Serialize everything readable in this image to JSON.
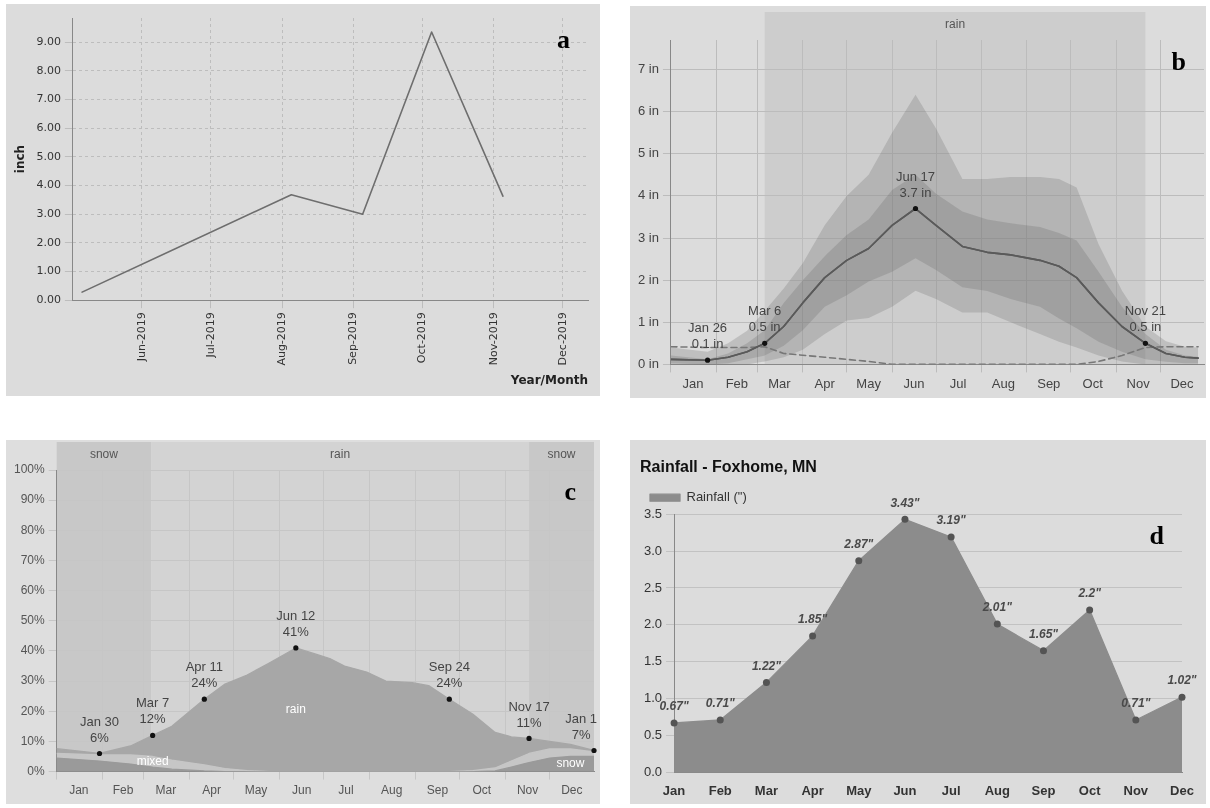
{
  "chart_data": [
    {
      "type": "line",
      "xlabel": "Year/Month",
      "ylabel": "inch",
      "annotations": [
        "a"
      ],
      "x": [
        "2019-05-06",
        "2019-08-05",
        "2019-09-05",
        "2019-10-05",
        "2019-11-05"
      ],
      "series": [
        {
          "color": "#6e6e6e",
          "values": [
            0.28,
            3.68,
            3.0,
            9.36,
            3.63
          ]
        }
      ],
      "xlim": [
        "2019-05-02",
        "2019-12-12"
      ],
      "xticks": [
        {
          "value": "2019-06-01",
          "label": "Jun-2019"
        },
        {
          "value": "2019-07-01",
          "label": "Jul-2019"
        },
        {
          "value": "2019-08-01",
          "label": "Aug-2019"
        },
        {
          "value": "2019-09-01",
          "label": "Sep-2019"
        },
        {
          "value": "2019-10-01",
          "label": "Oct-2019"
        },
        {
          "value": "2019-11-01",
          "label": "Nov-2019"
        },
        {
          "value": "2019-12-01",
          "label": "Dec-2019"
        }
      ],
      "ylim": [
        0,
        9.85
      ],
      "yticks": [
        {
          "value": 0,
          "label": "0.00"
        },
        {
          "value": 1,
          "label": "1.00"
        },
        {
          "value": 2,
          "label": "2.00"
        },
        {
          "value": 3,
          "label": "3.00"
        },
        {
          "value": 4,
          "label": "4.00"
        },
        {
          "value": 5,
          "label": "5.00"
        },
        {
          "value": 6,
          "label": "6.00"
        },
        {
          "value": 7,
          "label": "7.00"
        },
        {
          "value": 8,
          "label": "8.00"
        },
        {
          "value": 9,
          "label": "9.00"
        }
      ],
      "grid": true,
      "marker": "none"
    },
    {
      "type": "line",
      "annotations": [
        "b",
        {
          "text": "Jan 26\n0.1 in",
          "x": "--01-26",
          "y": 0.1
        },
        {
          "text": "Mar 6\n0.5 in",
          "x": "--03-06",
          "y": 0.5
        },
        {
          "text": "Jun 17\n3.7 in",
          "x": "--06-17",
          "y": 3.7
        },
        {
          "text": "Nov 21\n0.5 in",
          "x": "--11-21",
          "y": 0.5
        }
      ],
      "x": [
        "--01-01",
        "--01-26",
        "--02-09",
        "--02-22",
        "--03-06",
        "--03-19",
        "--04-01",
        "--04-16",
        "--05-01",
        "--05-16",
        "--06-01",
        "--06-17",
        "--07-01",
        "--07-19",
        "--08-05",
        "--08-21",
        "--09-10",
        "--09-23",
        "--10-05",
        "--10-20",
        "--11-05",
        "--11-21",
        "--12-05",
        "--12-18",
        "--12-27"
      ],
      "series": [
        {
          "color": "#5a5a5a",
          "values": [
            0.12,
            0.1,
            0.17,
            0.3,
            0.5,
            0.9,
            1.46,
            2.06,
            2.47,
            2.75,
            3.3,
            3.7,
            3.3,
            2.8,
            2.66,
            2.6,
            2.47,
            2.33,
            2.06,
            1.46,
            0.9,
            0.5,
            0.26,
            0.17,
            0.15
          ],
          "lower": [
            0.03,
            0,
            0.03,
            0.12,
            0.21,
            0.44,
            0.81,
            1.37,
            1.64,
            1.97,
            2.2,
            2.52,
            2.24,
            1.83,
            1.74,
            1.55,
            1.37,
            1.09,
            0.86,
            0.54,
            0.3,
            0.12,
            0.06,
            0.03,
            0.03
          ],
          "upper": [
            0.21,
            0.12,
            0.26,
            0.5,
            0.81,
            1.46,
            2.0,
            2.57,
            3.07,
            3.44,
            4.14,
            4.5,
            4.05,
            3.63,
            3.44,
            3.35,
            3.26,
            3.12,
            2.94,
            2.2,
            1.37,
            0.72,
            0.35,
            0.21,
            0.18
          ]
        },
        {
          "color": "#5a5a5a",
          "values": [
            0.12,
            0.1,
            0.17,
            0.3,
            0.5,
            0.9,
            1.46,
            2.06,
            2.47,
            2.75,
            3.3,
            3.7,
            3.3,
            2.8,
            2.66,
            2.6,
            2.47,
            2.33,
            2.06,
            1.46,
            0.9,
            0.5,
            0.26,
            0.17,
            0.15
          ],
          "lower": [
            0,
            0,
            0,
            0,
            0.07,
            0.17,
            0.35,
            0.72,
            1.04,
            1.1,
            1.37,
            1.75,
            1.55,
            1.23,
            1.23,
            1.0,
            0.72,
            0.54,
            0.4,
            0.21,
            0.07,
            0,
            0,
            0,
            0
          ],
          "upper": [
            0.4,
            0.3,
            0.5,
            0.8,
            1.27,
            1.8,
            2.4,
            3.3,
            4.0,
            4.5,
            5.5,
            6.4,
            5.6,
            4.4,
            4.4,
            4.45,
            4.45,
            4.4,
            4.2,
            2.85,
            1.75,
            0.9,
            0.55,
            0.42,
            0.4
          ]
        },
        {
          "color": "#777777",
          "line_style": "dashed",
          "x": [
            "--01-01",
            "--01-26",
            "--02-22",
            "--03-06",
            "--03-19",
            "--04-16",
            "--05-16",
            "--06-01",
            "--10-05",
            "--10-20",
            "--11-05",
            "--11-21",
            "--12-05",
            "--12-27"
          ],
          "values": [
            0.42,
            0.4,
            0.4,
            0.42,
            0.26,
            0.17,
            0.07,
            0,
            0,
            0.07,
            0.21,
            0.4,
            0.42,
            0.42
          ]
        }
      ],
      "bands": [
        {
          "axis": "x",
          "from": "--03-06",
          "to": "--11-21",
          "label": "rain",
          "color": "#cdcdcd"
        }
      ],
      "xlim": [
        "--01-01",
        "--12-31"
      ],
      "xticks": [
        {
          "value": "--01-01",
          "label": null
        },
        {
          "value": "--01-16",
          "label": "Jan"
        },
        {
          "value": "--02-01",
          "label": null
        },
        {
          "value": "--02-15",
          "label": "Feb"
        },
        {
          "value": "--03-01",
          "label": null
        },
        {
          "value": "--03-16",
          "label": "Mar"
        },
        {
          "value": "--04-01",
          "label": null
        },
        {
          "value": "--04-16",
          "label": "Apr"
        },
        {
          "value": "--05-01",
          "label": null
        },
        {
          "value": "--05-16",
          "label": "May"
        },
        {
          "value": "--06-01",
          "label": null
        },
        {
          "value": "--06-16",
          "label": "Jun"
        },
        {
          "value": "--07-01",
          "label": null
        },
        {
          "value": "--07-16",
          "label": "Jul"
        },
        {
          "value": "--08-01",
          "label": null
        },
        {
          "value": "--08-16",
          "label": "Aug"
        },
        {
          "value": "--09-01",
          "label": null
        },
        {
          "value": "--09-16",
          "label": "Sep"
        },
        {
          "value": "--10-01",
          "label": null
        },
        {
          "value": "--10-16",
          "label": "Oct"
        },
        {
          "value": "--11-01",
          "label": null
        },
        {
          "value": "--11-16",
          "label": "Nov"
        },
        {
          "value": "--12-01",
          "label": null
        },
        {
          "value": "--12-16",
          "label": "Dec"
        }
      ],
      "ylim": [
        0,
        7.7
      ],
      "yticks": [
        {
          "value": 0,
          "label": "0 in"
        },
        {
          "value": 1,
          "label": "1 in"
        },
        {
          "value": 2,
          "label": "2 in"
        },
        {
          "value": 3,
          "label": "3 in"
        },
        {
          "value": 4,
          "label": "4 in"
        },
        {
          "value": 5,
          "label": "5 in"
        },
        {
          "value": 6,
          "label": "6 in"
        },
        {
          "value": 7,
          "label": "7 in"
        }
      ],
      "grid": true,
      "marker": "none"
    },
    {
      "type": "area",
      "stacked": true,
      "annotations": [
        "c",
        {
          "text": "Jan 30\n6%",
          "x": "--01-30",
          "y": 6
        },
        {
          "text": "Mar 7\n12%",
          "x": "--03-07",
          "y": 12
        },
        {
          "text": "Apr 11\n24%",
          "x": "--04-11",
          "y": 24
        },
        {
          "text": "Jun 12\n41%",
          "x": "--06-12",
          "y": 41
        },
        {
          "text": "Sep 24\n24%",
          "x": "--09-24",
          "y": 24
        },
        {
          "text": "Nov 17\n11%",
          "x": "--11-17",
          "y": 11
        },
        {
          "text": "Jan 1\n7%",
          "x": "--12-31",
          "y": 7
        }
      ],
      "x": [
        "--01-01",
        "--01-30",
        "--02-20",
        "--03-07",
        "--03-20",
        "--04-11",
        "--04-25",
        "--05-10",
        "--05-25",
        "--06-12",
        "--06-25",
        "--07-05",
        "--07-15",
        "--07-30",
        "--08-12",
        "--08-30",
        "--09-10",
        "--09-24",
        "--10-10",
        "--10-25",
        "--11-05",
        "--11-17",
        "--12-01",
        "--12-15",
        "--12-31"
      ],
      "series": [
        {
          "name": "snow",
          "color": "#9a9a9a",
          "values": [
            4.5,
            3.5,
            2.5,
            1.5,
            0.8,
            0.2,
            0,
            0,
            0,
            0,
            0,
            0,
            0,
            0,
            0,
            0,
            0,
            0,
            0,
            0.2,
            1.5,
            3,
            4.5,
            5,
            5
          ]
        },
        {
          "name": "mixed",
          "color": "#c6c6c6",
          "values": [
            1.5,
            2,
            3,
            3.5,
            3,
            2,
            1,
            0.3,
            0,
            0,
            0,
            0,
            0,
            0,
            0,
            0,
            0,
            0,
            0.3,
            1,
            2,
            3,
            3,
            2.5,
            1.5
          ]
        },
        {
          "name": "rain",
          "color": "#a7a7a7",
          "values": [
            1.6,
            0.5,
            3,
            7,
            11.2,
            21.8,
            28,
            31.7,
            36,
            41,
            39,
            37.5,
            35,
            33,
            30,
            29.5,
            28.5,
            24,
            18.7,
            11.8,
            8,
            5,
            2.5,
            1.5,
            0.5
          ]
        }
      ],
      "bands": [
        {
          "axis": "x",
          "from": "--01-01",
          "to": "--03-06",
          "label": "snow",
          "color": "#c8c8c8"
        },
        {
          "axis": "x",
          "from": "--03-06",
          "to": "--11-17",
          "label": "rain",
          "color": "#d3d3d3"
        },
        {
          "axis": "x",
          "from": "--11-17",
          "to": "--12-31",
          "label": "snow",
          "color": "#c8c8c8"
        }
      ],
      "xlim": [
        "--01-01",
        "--12-31"
      ],
      "xticks": [
        {
          "value": "--01-01",
          "label": null
        },
        {
          "value": "--01-16",
          "label": "Jan"
        },
        {
          "value": "--02-01",
          "label": null
        },
        {
          "value": "--02-15",
          "label": "Feb"
        },
        {
          "value": "--03-01",
          "label": null
        },
        {
          "value": "--03-16",
          "label": "Mar"
        },
        {
          "value": "--04-01",
          "label": null
        },
        {
          "value": "--04-16",
          "label": "Apr"
        },
        {
          "value": "--05-01",
          "label": null
        },
        {
          "value": "--05-16",
          "label": "May"
        },
        {
          "value": "--06-01",
          "label": null
        },
        {
          "value": "--06-16",
          "label": "Jun"
        },
        {
          "value": "--07-01",
          "label": null
        },
        {
          "value": "--07-16",
          "label": "Jul"
        },
        {
          "value": "--08-01",
          "label": null
        },
        {
          "value": "--08-16",
          "label": "Aug"
        },
        {
          "value": "--09-01",
          "label": null
        },
        {
          "value": "--09-16",
          "label": "Sep"
        },
        {
          "value": "--10-01",
          "label": null
        },
        {
          "value": "--10-16",
          "label": "Oct"
        },
        {
          "value": "--11-01",
          "label": null
        },
        {
          "value": "--11-16",
          "label": "Nov"
        },
        {
          "value": "--12-01",
          "label": null
        },
        {
          "value": "--12-16",
          "label": "Dec"
        }
      ],
      "ylim": [
        0,
        100
      ],
      "yticks": [
        {
          "value": 0,
          "label": "0%"
        },
        {
          "value": 10,
          "label": "10%"
        },
        {
          "value": 20,
          "label": "20%"
        },
        {
          "value": 30,
          "label": "30%"
        },
        {
          "value": 40,
          "label": "40%"
        },
        {
          "value": 50,
          "label": "50%"
        },
        {
          "value": 60,
          "label": "60%"
        },
        {
          "value": 70,
          "label": "70%"
        },
        {
          "value": 80,
          "label": "80%"
        },
        {
          "value": 90,
          "label": "90%"
        },
        {
          "value": 100,
          "label": "100%"
        }
      ],
      "grid": true,
      "marker": "none"
    },
    {
      "type": "area",
      "title": "Rainfall - Foxhome, MN",
      "annotations": [
        "d"
      ],
      "categories": [
        "Jan",
        "Feb",
        "Mar",
        "Apr",
        "May",
        "Jun",
        "Jul",
        "Aug",
        "Sep",
        "Oct",
        "Nov",
        "Dec"
      ],
      "series": [
        {
          "name": "Rainfall (\")",
          "color": "#8c8c8c",
          "values": [
            0.67,
            0.71,
            1.22,
            1.85,
            2.87,
            3.43,
            3.19,
            2.01,
            1.65,
            2.2,
            0.71,
            1.02
          ],
          "value_labels": [
            "0.67\"",
            "0.71\"",
            "1.22\"",
            "1.85\"",
            "2.87\"",
            "3.43\"",
            "3.19\"",
            "2.01\"",
            "1.65\"",
            "2.2\"",
            "0.71\"",
            "1.02\""
          ]
        }
      ],
      "ylim": [
        0,
        3.5
      ],
      "yticks": [
        {
          "value": 0,
          "label": "0.0"
        },
        {
          "value": 0.5,
          "label": "0.5"
        },
        {
          "value": 1,
          "label": "1.0"
        },
        {
          "value": 1.5,
          "label": "1.5"
        },
        {
          "value": 2,
          "label": "2.0"
        },
        {
          "value": 2.5,
          "label": "2.5"
        },
        {
          "value": 3,
          "label": "3.0"
        },
        {
          "value": 3.5,
          "label": "3.5"
        }
      ],
      "grid": "y",
      "legend": "top left",
      "marker": "circle"
    }
  ]
}
